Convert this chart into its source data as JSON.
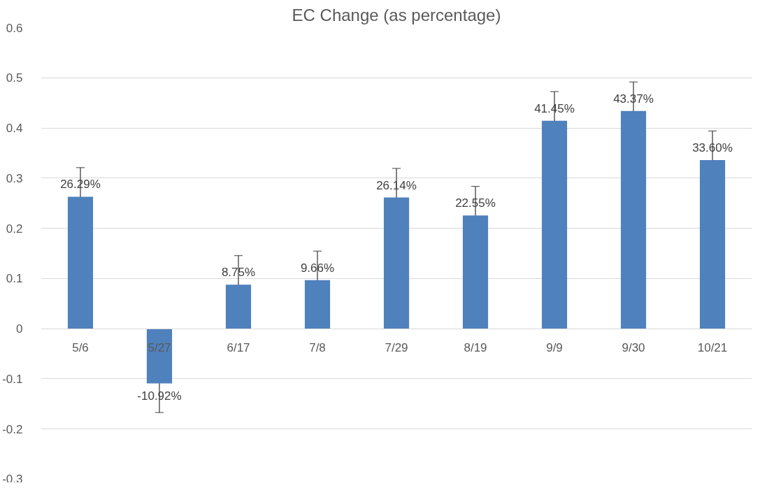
{
  "chart_data": {
    "type": "bar",
    "title": "EC Change (as percentage)",
    "categories": [
      "5/6",
      "5/27",
      "6/17",
      "7/8",
      "7/29",
      "8/19",
      "9/9",
      "9/30",
      "10/21"
    ],
    "values": [
      0.2629,
      -0.1092,
      0.0875,
      0.0966,
      0.2614,
      0.2255,
      0.4145,
      0.4337,
      0.336
    ],
    "value_labels": [
      "26.29%",
      "-10.92%",
      "8.75%",
      "9.66%",
      "26.14%",
      "22.55%",
      "41.45%",
      "43.37%",
      "33.60%"
    ],
    "errors": [
      0.058,
      0.058,
      0.058,
      0.058,
      0.058,
      0.058,
      0.058,
      0.058,
      0.058
    ],
    "color": "#4f81bd",
    "ylim": [
      -0.3,
      0.6
    ],
    "yticks": [
      -0.3,
      -0.2,
      -0.1,
      0,
      0.1,
      0.2,
      0.3,
      0.4,
      0.5,
      0.6
    ],
    "grid": "y"
  }
}
